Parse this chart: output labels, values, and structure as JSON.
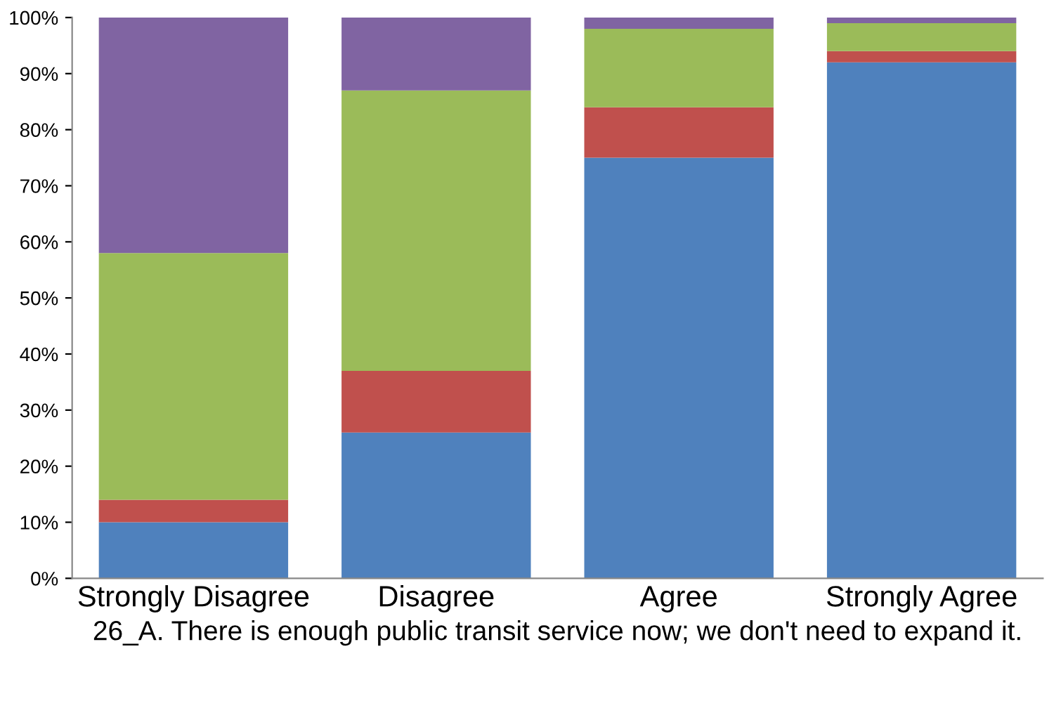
{
  "chart_data": {
    "type": "bar",
    "stacked": true,
    "xlabel": "26_A. There is enough public transit service now; we don't need to expand it.",
    "categories": [
      "Strongly Disagree",
      "Disagree",
      "Agree",
      "Strongly Agree"
    ],
    "series": [
      {
        "color": "#4f81bd",
        "values": [
          10,
          26,
          75,
          92
        ]
      },
      {
        "color": "#c0504d",
        "values": [
          4,
          11,
          9,
          2
        ]
      },
      {
        "color": "#9bbb59",
        "values": [
          44,
          50,
          14,
          5
        ]
      },
      {
        "color": "#8064a2",
        "values": [
          42,
          13,
          2,
          1
        ]
      }
    ],
    "ylim": [
      0,
      100
    ],
    "yticks": [
      {
        "value": 0,
        "label": "0%"
      },
      {
        "value": 10,
        "label": "10%"
      },
      {
        "value": 20,
        "label": "20%"
      },
      {
        "value": 30,
        "label": "30%"
      },
      {
        "value": 40,
        "label": "40%"
      },
      {
        "value": 50,
        "label": "50%"
      },
      {
        "value": 60,
        "label": "60%"
      },
      {
        "value": 70,
        "label": "70%"
      },
      {
        "value": 80,
        "label": "80%"
      },
      {
        "value": 90,
        "label": "90%"
      },
      {
        "value": 100,
        "label": "100%"
      }
    ],
    "grid": false
  }
}
